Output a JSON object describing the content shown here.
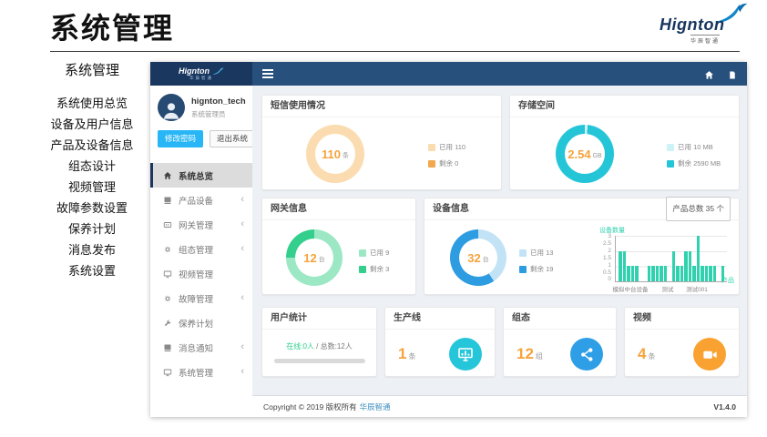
{
  "page": {
    "title": "系统管理",
    "logo": {
      "brand": "Hignton",
      "sub": "华辰智通"
    },
    "outer_menu": {
      "heading": "系统管理",
      "items": [
        "系统使用总览",
        "设备及用户信息",
        "产品及设备信息",
        "组态设计",
        "视频管理",
        "故障参数设置",
        "保养计划",
        "消息发布",
        "系统设置"
      ]
    }
  },
  "app": {
    "brand": {
      "name": "Hignton",
      "sub": "华辰智通"
    },
    "user": {
      "name": "hignton_tech",
      "role": "系统管理员"
    },
    "actions": {
      "change_password": "修改密码",
      "logout": "退出系统"
    },
    "sidebar": {
      "items": [
        {
          "label": "系统总览",
          "active": true
        },
        {
          "label": "产品设备",
          "has_children": true
        },
        {
          "label": "网关管理",
          "has_children": true
        },
        {
          "label": "组态管理",
          "has_children": true
        },
        {
          "label": "视频管理",
          "has_children": false
        },
        {
          "label": "故障管理",
          "has_children": true
        },
        {
          "label": "保养计划",
          "has_children": false
        },
        {
          "label": "消息通知",
          "has_children": true
        },
        {
          "label": "系统管理",
          "has_children": true
        }
      ]
    },
    "cards": {
      "sms": {
        "title": "短信使用情况",
        "value": "110",
        "unit": "条",
        "legend": [
          "已用 110",
          "剩余 0"
        ],
        "segments": [
          {
            "color": "#fbdcb0",
            "value": 110
          },
          {
            "color": "#f2a84e",
            "value": 0
          }
        ]
      },
      "storage": {
        "title": "存储空间",
        "value": "2.54",
        "unit": "GB",
        "legend": [
          "已用 10 MB",
          "剩余 2590 MB"
        ],
        "segments": [
          {
            "color": "#cdf3f6",
            "value": 10
          },
          {
            "color": "#25c5d8",
            "value": 2590
          }
        ]
      },
      "gateway": {
        "title": "网关信息",
        "value": "12",
        "unit": "台",
        "legend": [
          "已用 9",
          "剩余 3"
        ],
        "segments": [
          {
            "color": "#9ce8c4",
            "value": 9
          },
          {
            "color": "#34cf8d",
            "value": 3
          }
        ]
      },
      "device": {
        "title": "设备信息",
        "badge": "产品总数 35 个",
        "value": "32",
        "unit": "台",
        "legend": [
          "已用 13",
          "剩余 19"
        ],
        "segments": [
          {
            "color": "#c2e3f6",
            "value": 13
          },
          {
            "color": "#2e9ce1",
            "value": 19
          }
        ]
      },
      "users": {
        "title": "用户统计",
        "online": "在线:0人",
        "total": "/ 总数:12人"
      },
      "production_line": {
        "title": "生产线",
        "value": "1",
        "unit": "条"
      },
      "scada": {
        "title": "组态",
        "value": "12",
        "unit": "组"
      },
      "video": {
        "title": "视频",
        "value": "4",
        "unit": "条"
      }
    },
    "footer": {
      "copyright": "Copyright © 2019 版权所有",
      "company": "华辰智通",
      "version": "V1.4.0"
    }
  },
  "colors": {
    "primary_navy": "#19375f",
    "navbar_blue": "#27507d",
    "accent_orange": "#f5a33c",
    "button_blue": "#29b6f6",
    "bar_teal": "#2fd1ae",
    "icon_cyan": "#26c6da",
    "icon_blue": "#2e9fe6",
    "icon_orange": "#f9a231",
    "online_green": "#2ecc8e",
    "link_blue": "#3c8dbc"
  },
  "chart_data": [
    {
      "type": "pie",
      "title": "短信使用情况",
      "center_value": "110 条",
      "slices": [
        {
          "label": "已用",
          "value": 110
        },
        {
          "label": "剩余",
          "value": 0
        }
      ]
    },
    {
      "type": "pie",
      "title": "存储空间",
      "center_value": "2.54 GB",
      "unit": "MB",
      "slices": [
        {
          "label": "已用",
          "value": 10
        },
        {
          "label": "剩余",
          "value": 2590
        }
      ]
    },
    {
      "type": "pie",
      "title": "网关信息",
      "center_value": "12 台",
      "slices": [
        {
          "label": "已用",
          "value": 9
        },
        {
          "label": "剩余",
          "value": 3
        }
      ]
    },
    {
      "type": "pie",
      "title": "设备信息",
      "center_value": "32 台",
      "slices": [
        {
          "label": "已用",
          "value": 13
        },
        {
          "label": "剩余",
          "value": 19
        }
      ]
    },
    {
      "type": "bar",
      "title": "设备数量",
      "ylabel": "设备数量",
      "xlabel": "产品",
      "ylim": [
        0,
        3
      ],
      "yticks": [
        0,
        0.5,
        1,
        1.5,
        2,
        2.5,
        3
      ],
      "values": [
        2,
        2,
        1,
        1,
        1,
        0,
        0,
        1,
        1,
        1,
        1,
        1,
        0,
        2,
        1,
        1,
        2,
        2,
        1,
        3,
        1,
        1,
        1,
        1,
        0,
        1
      ],
      "xticklabels": [
        "模拟中台设备",
        "测试",
        "测试001"
      ],
      "bar_color": "#2fd1ae",
      "grid": true,
      "legend_position": "none"
    }
  ]
}
